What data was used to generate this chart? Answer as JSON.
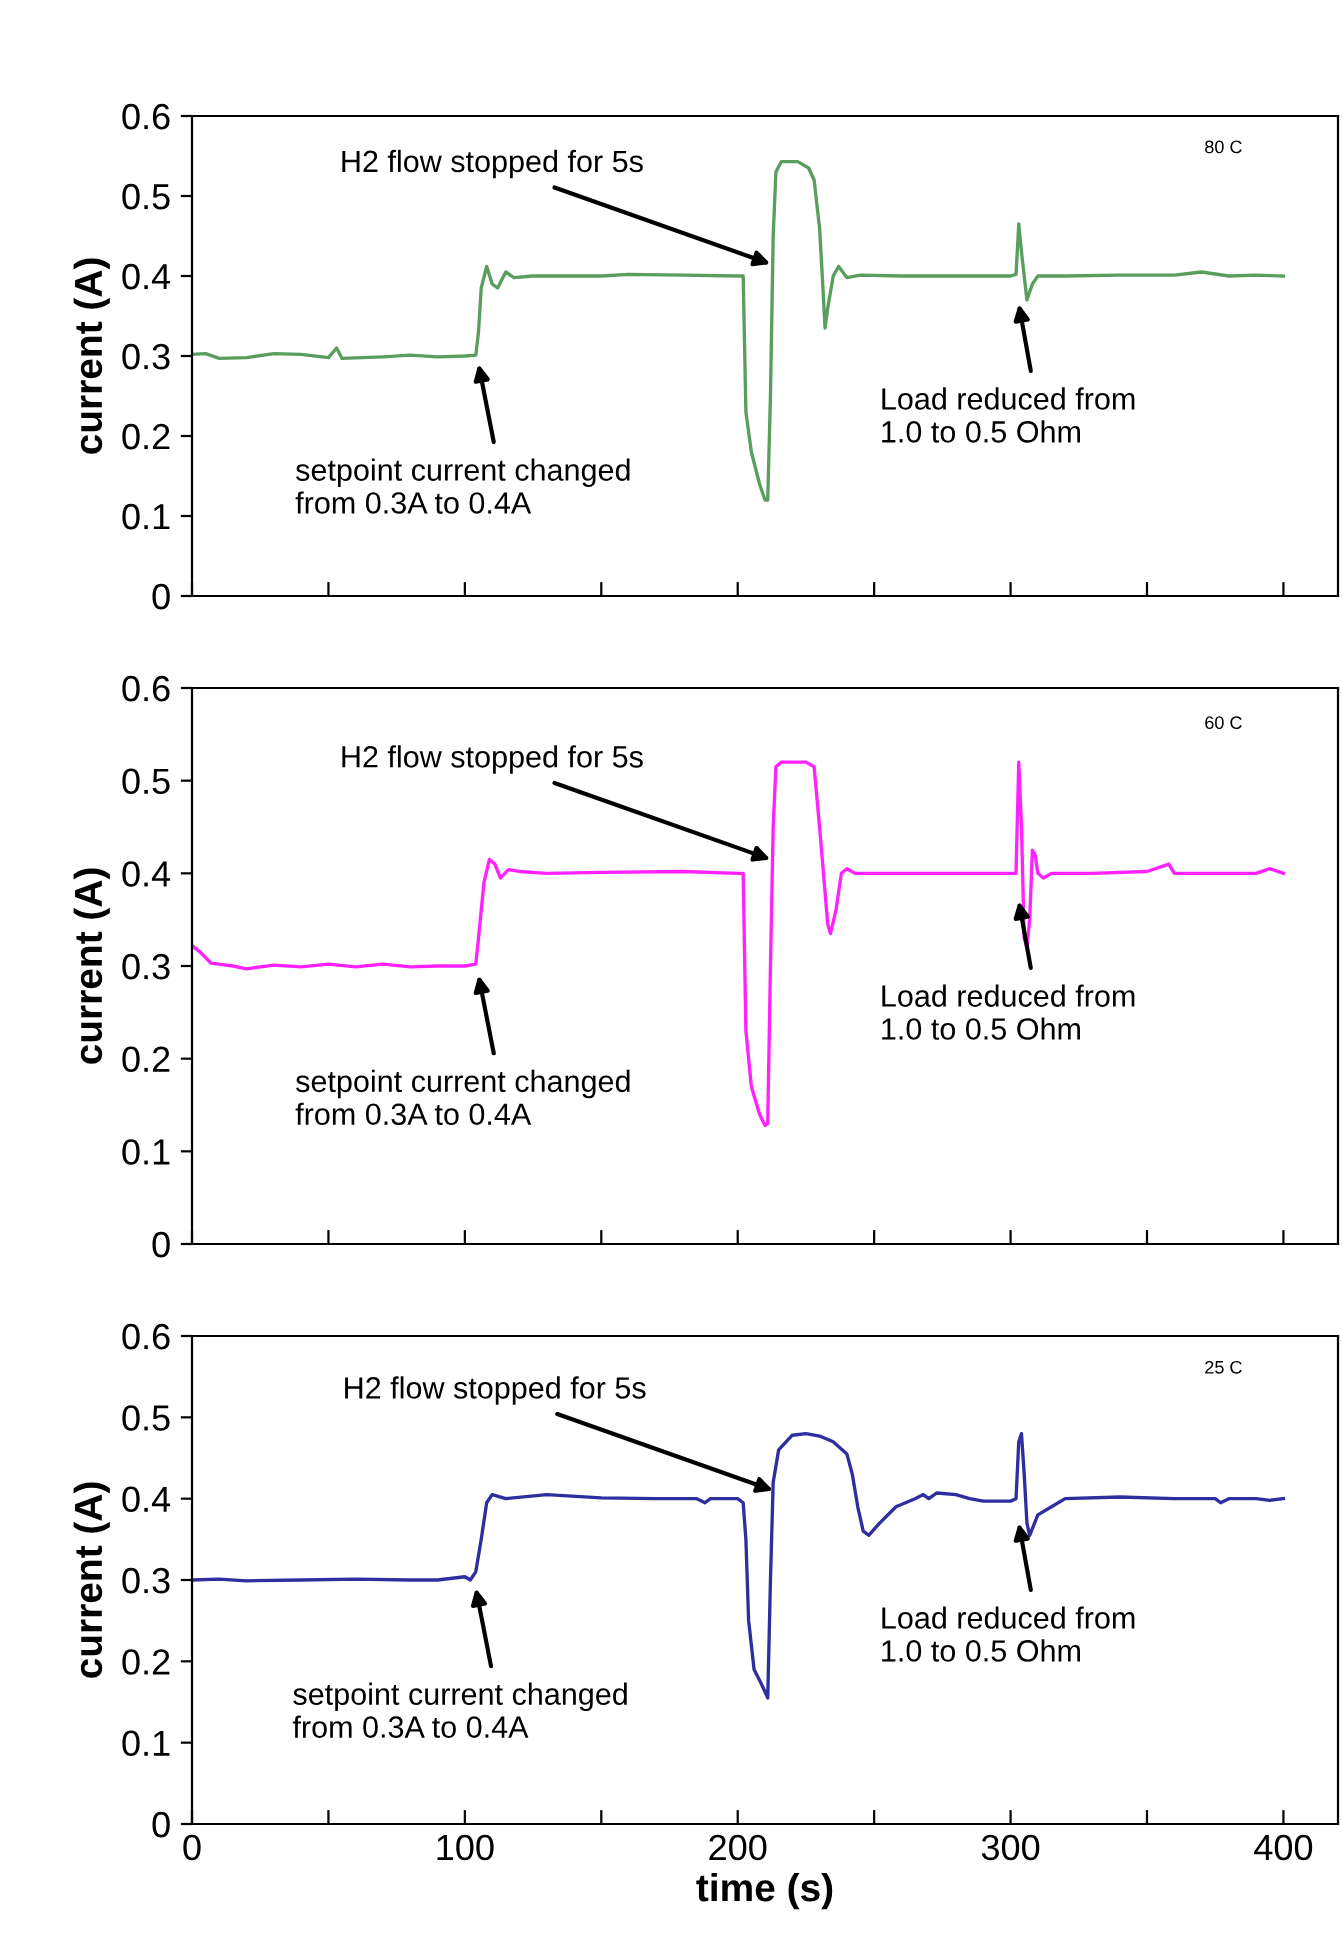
{
  "chart_data": [
    {
      "type": "line",
      "ylabel": "current (A)",
      "xlim": [
        0,
        420
      ],
      "ylim": [
        0,
        0.6
      ],
      "tick_labels": "y",
      "xticks": [
        0,
        {
          "value": 50,
          "label": null
        },
        {
          "value": 100,
          "label": null
        },
        {
          "value": 150,
          "label": null
        },
        {
          "value": 200,
          "label": null
        },
        {
          "value": 250,
          "label": null
        },
        {
          "value": 300,
          "label": null
        },
        {
          "value": 350,
          "label": null
        },
        {
          "value": 400,
          "label": null
        }
      ],
      "yticks": [
        0,
        0.1,
        0.2,
        0.3,
        0.4,
        0.5,
        0.6
      ],
      "series": [
        {
          "color": "#5a9e5e",
          "x": [
            0,
            5,
            10,
            20,
            30,
            40,
            50,
            53,
            55,
            70,
            80,
            90,
            100,
            104,
            105,
            106,
            108,
            110,
            112,
            115,
            118,
            125,
            150,
            160,
            180,
            200,
            202,
            203,
            205,
            208,
            210,
            211,
            212,
            213,
            214,
            216,
            222,
            226,
            228,
            230,
            231,
            232,
            233,
            235,
            237,
            240,
            245,
            260,
            280,
            300,
            302,
            303,
            304,
            305,
            306,
            308,
            310,
            320,
            340,
            360,
            370,
            380,
            390,
            400
          ],
          "values": [
            0.302,
            0.303,
            0.297,
            0.298,
            0.303,
            0.302,
            0.298,
            0.31,
            0.297,
            0.299,
            0.301,
            0.299,
            0.3,
            0.301,
            0.33,
            0.385,
            0.412,
            0.39,
            0.385,
            0.405,
            0.398,
            0.4,
            0.4,
            0.402,
            0.401,
            0.4,
            0.4,
            0.23,
            0.18,
            0.14,
            0.12,
            0.12,
            0.25,
            0.45,
            0.53,
            0.543,
            0.543,
            0.535,
            0.52,
            0.46,
            0.4,
            0.335,
            0.36,
            0.4,
            0.412,
            0.398,
            0.401,
            0.4,
            0.4,
            0.4,
            0.402,
            0.465,
            0.43,
            0.4,
            0.37,
            0.39,
            0.4,
            0.4,
            0.401,
            0.401,
            0.405,
            0.4,
            0.401,
            0.4
          ]
        }
      ],
      "annotations": [
        {
          "text": "setpoint current changed\nfrom 0.3A to 0.4A",
          "x": 105,
          "y": 0.29
        },
        {
          "text": "H2 flow stopped for 5s",
          "x": 212,
          "y": 0.415
        },
        {
          "text": "Load reduced from\n1.0 to 0.5 Ohm",
          "x": 303,
          "y": 0.365
        },
        "80 C"
      ]
    },
    {
      "type": "line",
      "ylabel": "current (A)",
      "xlim": [
        0,
        420
      ],
      "ylim": [
        0,
        0.6
      ],
      "tick_labels": "y",
      "xticks": [
        0,
        {
          "value": 50,
          "label": null
        },
        {
          "value": 100,
          "label": null
        },
        {
          "value": 150,
          "label": null
        },
        {
          "value": 200,
          "label": null
        },
        {
          "value": 250,
          "label": null
        },
        {
          "value": 300,
          "label": null
        },
        {
          "value": 350,
          "label": null
        },
        {
          "value": 400,
          "label": null
        }
      ],
      "yticks": [
        0,
        0.1,
        0.2,
        0.3,
        0.4,
        0.5,
        0.6
      ],
      "series": [
        {
          "color": "#ff22ff",
          "x": [
            0,
            3,
            7,
            15,
            20,
            30,
            40,
            50,
            60,
            70,
            80,
            90,
            100,
            104,
            105,
            107,
            109,
            111,
            113,
            116,
            120,
            130,
            150,
            180,
            200,
            202,
            203,
            205,
            208,
            210,
            211,
            212,
            213,
            214,
            216,
            225,
            228,
            230,
            232,
            233,
            234,
            236,
            238,
            240,
            243,
            260,
            280,
            300,
            302,
            303,
            304,
            305,
            306,
            307,
            308,
            309,
            310,
            312,
            315,
            330,
            350,
            358,
            360,
            380,
            390,
            395,
            400
          ],
          "values": [
            0.322,
            0.315,
            0.303,
            0.3,
            0.297,
            0.301,
            0.299,
            0.302,
            0.299,
            0.302,
            0.299,
            0.3,
            0.3,
            0.302,
            0.33,
            0.39,
            0.415,
            0.41,
            0.395,
            0.404,
            0.402,
            0.4,
            0.401,
            0.402,
            0.4,
            0.4,
            0.23,
            0.17,
            0.14,
            0.128,
            0.13,
            0.3,
            0.45,
            0.515,
            0.52,
            0.52,
            0.515,
            0.45,
            0.38,
            0.345,
            0.335,
            0.36,
            0.4,
            0.405,
            0.4,
            0.4,
            0.4,
            0.4,
            0.4,
            0.52,
            0.45,
            0.33,
            0.32,
            0.35,
            0.425,
            0.42,
            0.4,
            0.395,
            0.4,
            0.4,
            0.402,
            0.41,
            0.4,
            0.4,
            0.4,
            0.405,
            0.4
          ]
        }
      ],
      "annotations": [
        {
          "text": "setpoint current changed\nfrom 0.3A to 0.4A",
          "x": 105,
          "y": 0.29
        },
        {
          "text": "H2 flow stopped for 5s",
          "x": 212,
          "y": 0.415
        },
        {
          "text": "Load reduced from\n1.0 to 0.5 Ohm",
          "x": 303,
          "y": 0.37
        },
        "60 C"
      ]
    },
    {
      "type": "line",
      "ylabel": "current (A)",
      "xlabel": "time (s)",
      "xlim": [
        0,
        420
      ],
      "ylim": [
        0,
        0.6
      ],
      "xticks": [
        0,
        {
          "value": 50,
          "label": null
        },
        100,
        {
          "value": 150,
          "label": null
        },
        200,
        {
          "value": 250,
          "label": null
        },
        300,
        {
          "value": 350,
          "label": null
        },
        400
      ],
      "yticks": [
        0,
        0.1,
        0.2,
        0.3,
        0.4,
        0.5,
        0.6
      ],
      "series": [
        {
          "color": "#2e2e9e",
          "x": [
            0,
            10,
            20,
            40,
            60,
            80,
            90,
            100,
            102,
            104,
            106,
            108,
            110,
            115,
            130,
            150,
            170,
            185,
            188,
            190,
            200,
            202,
            203,
            204,
            206,
            209,
            211,
            212,
            213,
            215,
            220,
            225,
            230,
            235,
            240,
            242,
            244,
            246,
            248,
            252,
            258,
            265,
            268,
            270,
            273,
            280,
            285,
            290,
            300,
            302,
            303,
            304,
            305,
            306,
            307,
            310,
            315,
            320,
            340,
            360,
            375,
            377,
            380,
            390,
            395,
            400
          ],
          "values": [
            0.3,
            0.301,
            0.299,
            0.3,
            0.301,
            0.3,
            0.3,
            0.304,
            0.3,
            0.31,
            0.35,
            0.395,
            0.405,
            0.4,
            0.405,
            0.401,
            0.4,
            0.4,
            0.395,
            0.4,
            0.4,
            0.395,
            0.35,
            0.25,
            0.19,
            0.17,
            0.155,
            0.3,
            0.42,
            0.46,
            0.478,
            0.48,
            0.477,
            0.47,
            0.455,
            0.43,
            0.39,
            0.36,
            0.355,
            0.37,
            0.39,
            0.4,
            0.405,
            0.4,
            0.407,
            0.405,
            0.4,
            0.397,
            0.397,
            0.4,
            0.47,
            0.48,
            0.43,
            0.37,
            0.355,
            0.38,
            0.39,
            0.4,
            0.402,
            0.4,
            0.4,
            0.395,
            0.4,
            0.4,
            0.398,
            0.4
          ]
        }
      ],
      "annotations": [
        {
          "text": "setpoint current changed\nfrom 0.3A to 0.4A",
          "x": 104,
          "y": 0.29
        },
        {
          "text": "H2 flow stopped for 5s",
          "x": 213,
          "y": 0.41
        },
        {
          "text": "Load reduced from\n1.0 to 0.5 Ohm",
          "x": 303,
          "y": 0.37
        },
        "25 C"
      ]
    }
  ]
}
